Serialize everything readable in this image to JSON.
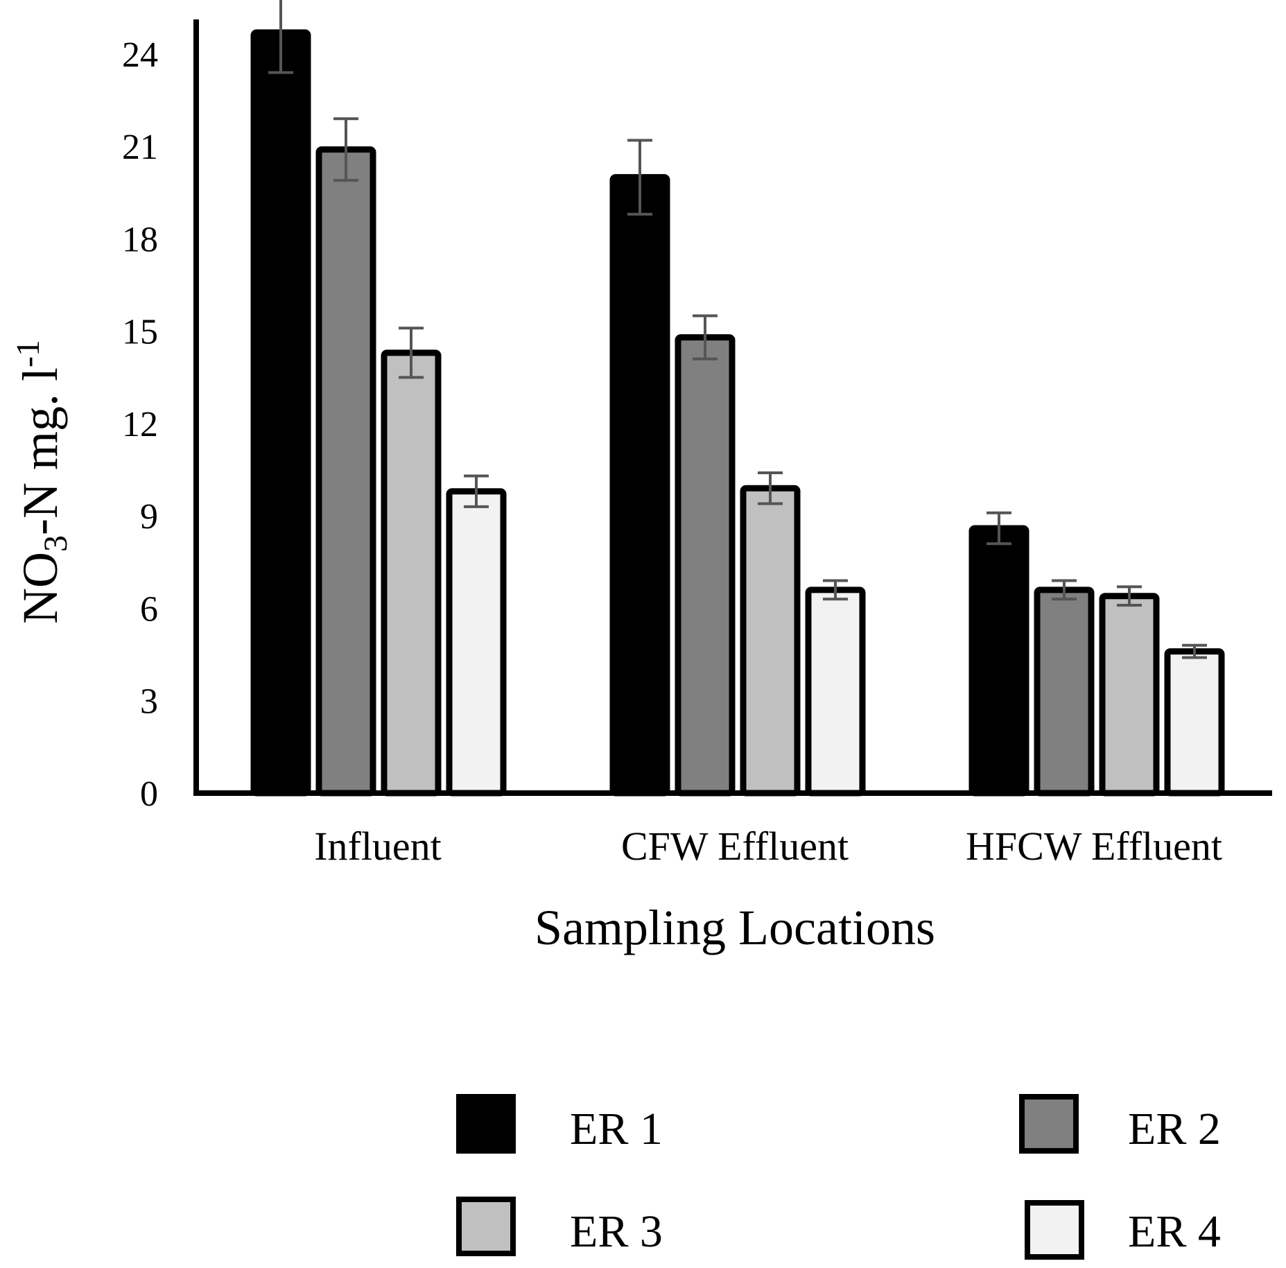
{
  "chart_data": {
    "type": "bar",
    "categories": [
      "Influent",
      "CFW Effluent",
      "HFCW Effluent"
    ],
    "series": [
      {
        "name": "ER 1",
        "values": [
          24.7,
          20.0,
          8.6
        ],
        "errors": [
          1.3,
          1.2,
          0.5
        ],
        "color": "#000000"
      },
      {
        "name": "ER 2",
        "values": [
          20.9,
          14.8,
          6.6
        ],
        "errors": [
          1.0,
          0.7,
          0.3
        ],
        "color": "#808080"
      },
      {
        "name": "ER 3",
        "values": [
          14.3,
          9.9,
          6.4
        ],
        "errors": [
          0.8,
          0.5,
          0.3
        ],
        "color": "#c0c0c0"
      },
      {
        "name": "ER 4",
        "values": [
          9.8,
          6.6,
          4.6
        ],
        "errors": [
          0.5,
          0.3,
          0.2
        ],
        "color": "#f2f2f2"
      }
    ],
    "xlabel": "Sampling Locations",
    "ylabel": {
      "main": "NO",
      "sub": "3",
      "mid": "-N mg. l",
      "sup": "-1"
    },
    "yticks": [
      0,
      3,
      6,
      9,
      12,
      15,
      18,
      21,
      24
    ],
    "ylim": [
      0,
      24.9
    ],
    "grid": false,
    "legend_position": "bottom"
  }
}
